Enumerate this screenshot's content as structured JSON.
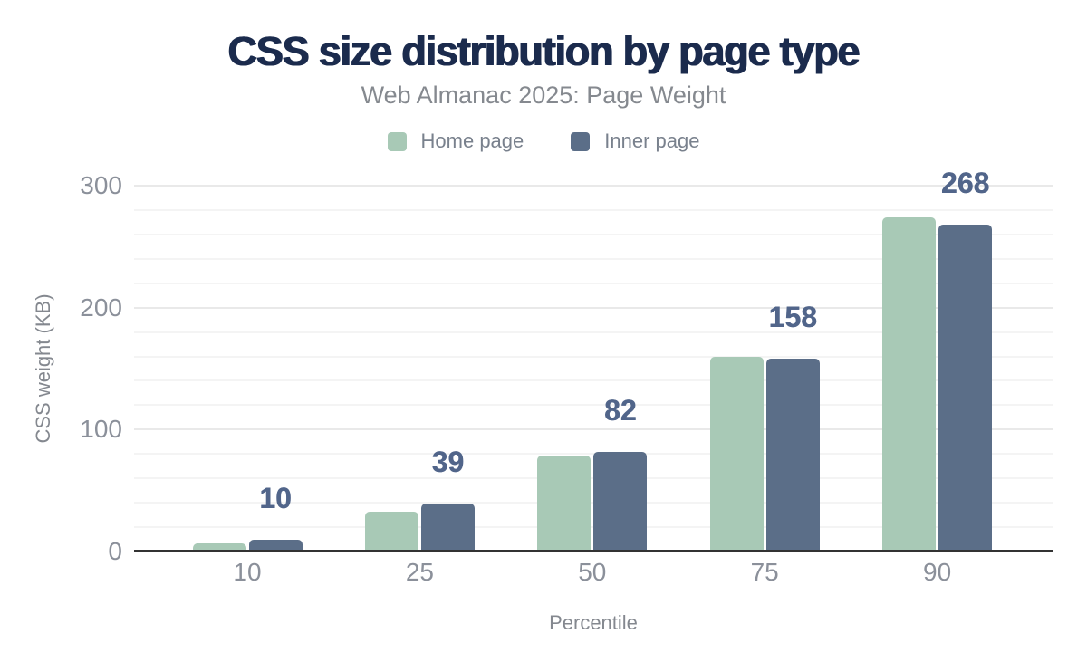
{
  "chart_data": {
    "type": "bar",
    "title": "CSS size distribution by page type",
    "subtitle": "Web Almanac 2025: Page Weight",
    "xlabel": "Percentile",
    "ylabel": "CSS weight (KB)",
    "categories": [
      "10",
      "25",
      "50",
      "75",
      "90"
    ],
    "series": [
      {
        "name": "Home page",
        "color": "#a8c9b6",
        "values": [
          7,
          33,
          79,
          160,
          274
        ]
      },
      {
        "name": "Inner page",
        "color": "#5b6e88",
        "values": [
          10,
          39,
          82,
          158,
          268
        ],
        "data_labels": [
          "10",
          "39",
          "82",
          "158",
          "268"
        ]
      }
    ],
    "ylim": [
      0,
      300
    ],
    "yticks": [
      0,
      100,
      200,
      300
    ],
    "grid": {
      "show": true,
      "minor_step": 20,
      "major_step": 100,
      "minor_color": "#f4f4f4",
      "major_color": "#e9e9e9"
    },
    "legend_position": "top",
    "colors": {
      "title": "#1b2b4d",
      "subtitle": "#85898f",
      "legend_text": "#79818d",
      "tick_labels": "#8b909a",
      "axis_titles": "#84888f",
      "axis_line": "#333333",
      "data_label": "#51658a",
      "background": "#ffffff"
    }
  }
}
